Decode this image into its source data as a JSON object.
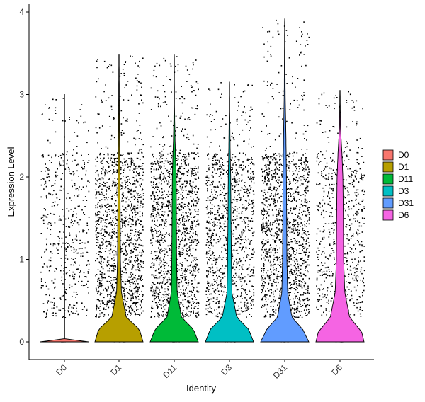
{
  "chart_data": {
    "type": "violin",
    "title": "",
    "xlabel": "Identity",
    "ylabel": "Expression Level",
    "ylim": [
      -0.2,
      4.1
    ],
    "yticks": [
      0,
      1,
      2,
      3,
      4
    ],
    "categories": [
      "D0",
      "D1",
      "D11",
      "D3",
      "D31",
      "D6"
    ],
    "colors": [
      "#F8766D",
      "#B79F00",
      "#00BA38",
      "#00BFC4",
      "#619CFF",
      "#F564E3"
    ],
    "legend": {
      "position": "right",
      "entries": [
        "D0",
        "D1",
        "D11",
        "D3",
        "D31",
        "D6"
      ]
    },
    "points_shown": true,
    "grid": false,
    "series": [
      {
        "name": "D0",
        "max": 3.0,
        "point_density": 0.35,
        "violin": [
          [
            0,
            1.0
          ],
          [
            0.02,
            0.01
          ],
          [
            3.0,
            0.005
          ]
        ]
      },
      {
        "name": "D1",
        "max": 3.48,
        "point_density": 1.0,
        "violin": [
          [
            0,
            1.0
          ],
          [
            0.15,
            0.85
          ],
          [
            0.3,
            0.3
          ],
          [
            0.6,
            0.1
          ],
          [
            1.0,
            0.06
          ],
          [
            1.5,
            0.05
          ],
          [
            2.0,
            0.04
          ],
          [
            2.5,
            0.02
          ],
          [
            3.48,
            0.005
          ]
        ]
      },
      {
        "name": "D11",
        "max": 3.48,
        "point_density": 1.0,
        "violin": [
          [
            0,
            1.0
          ],
          [
            0.15,
            0.8
          ],
          [
            0.3,
            0.3
          ],
          [
            0.6,
            0.12
          ],
          [
            1.0,
            0.1
          ],
          [
            1.5,
            0.09
          ],
          [
            2.0,
            0.08
          ],
          [
            2.5,
            0.03
          ],
          [
            2.85,
            0.01
          ],
          [
            3.48,
            0.004
          ]
        ]
      },
      {
        "name": "D3",
        "max": 3.15,
        "point_density": 0.75,
        "violin": [
          [
            0,
            1.0
          ],
          [
            0.15,
            0.8
          ],
          [
            0.3,
            0.3
          ],
          [
            0.6,
            0.1
          ],
          [
            1.0,
            0.08
          ],
          [
            1.5,
            0.06
          ],
          [
            2.0,
            0.05
          ],
          [
            2.3,
            0.03
          ],
          [
            2.8,
            0.01
          ],
          [
            3.15,
            0.004
          ]
        ]
      },
      {
        "name": "D31",
        "max": 3.92,
        "point_density": 1.0,
        "violin": [
          [
            0,
            1.0
          ],
          [
            0.15,
            0.75
          ],
          [
            0.3,
            0.3
          ],
          [
            0.6,
            0.12
          ],
          [
            1.0,
            0.09
          ],
          [
            1.5,
            0.08
          ],
          [
            2.0,
            0.07
          ],
          [
            2.5,
            0.05
          ],
          [
            3.0,
            0.02
          ],
          [
            3.92,
            0.004
          ]
        ]
      },
      {
        "name": "D6",
        "max": 3.05,
        "point_density": 0.5,
        "violin": [
          [
            0,
            1.0
          ],
          [
            0.12,
            0.9
          ],
          [
            0.3,
            0.4
          ],
          [
            0.6,
            0.2
          ],
          [
            1.0,
            0.15
          ],
          [
            1.5,
            0.14
          ],
          [
            2.0,
            0.12
          ],
          [
            2.3,
            0.08
          ],
          [
            2.6,
            0.02
          ],
          [
            3.05,
            0.005
          ]
        ]
      }
    ]
  }
}
